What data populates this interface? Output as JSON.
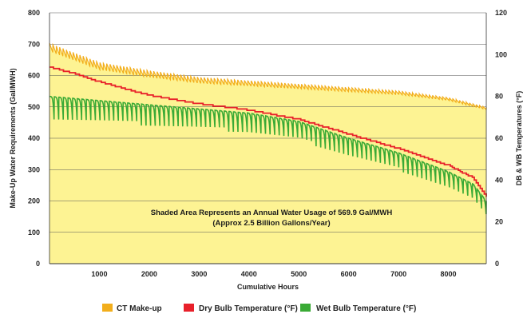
{
  "chart_data": {
    "type": "line",
    "title": "",
    "xlabel": "Cumulative Hours",
    "ylabel": "Make-Up Water Requirements (Gal/MWH)",
    "y2label": "DB & WB Temperatures (°F)",
    "xlim": [
      0,
      8760
    ],
    "ylim": [
      0,
      800
    ],
    "y2lim": [
      0,
      120
    ],
    "xticks": [
      1000,
      2000,
      3000,
      4000,
      5000,
      6000,
      7000,
      8000
    ],
    "xtick_labels": [
      "1000",
      "2000",
      "3000",
      "4000",
      "5000",
      "6000",
      "7000",
      "8000"
    ],
    "yticks": [
      0,
      100,
      200,
      300,
      400,
      500,
      600,
      700,
      800
    ],
    "ytick_labels": [
      "0",
      "100",
      "200",
      "300",
      "400",
      "500",
      "600",
      "700",
      "800"
    ],
    "y2ticks": [
      0,
      20,
      40,
      60,
      80,
      100,
      120
    ],
    "y2tick_labels": [
      "0",
      "20",
      "40",
      "60",
      "80",
      "100",
      "120"
    ],
    "grid": true,
    "legend": "bottom",
    "annotation": {
      "line1": "Shaded Area Represents an Annual Water Usage of 569.9 Gal/MWH",
      "line2": "(Approx 2.5 Billion Gallons/Year)"
    },
    "series": [
      {
        "name": "CT Make-up",
        "axis": "left",
        "color": "#f2ae1c",
        "x": [
          0,
          1000,
          2000,
          3000,
          4000,
          5000,
          6000,
          7000,
          8000,
          8760
        ],
        "y": [
          690,
          630,
          605,
          585,
          575,
          565,
          555,
          545,
          525,
          495
        ]
      },
      {
        "name": "Dry Bulb Temperature (°F)",
        "axis": "right",
        "color": "#e8202a",
        "x": [
          0,
          500,
          1000,
          2000,
          3000,
          4000,
          5000,
          6000,
          7000,
          8000,
          8500,
          8760
        ],
        "y": [
          94,
          91,
          87,
          80.5,
          76.5,
          73.5,
          69,
          62,
          55,
          47,
          41,
          32
        ]
      },
      {
        "name": "Wet Bulb Temperature (°F)",
        "axis": "right",
        "color": "#3aaa35",
        "x": [
          0,
          1000,
          2000,
          3000,
          4000,
          5000,
          6000,
          7000,
          8000,
          8500,
          8760
        ],
        "y": [
          80,
          78,
          76,
          74,
          72,
          68,
          60,
          53,
          44,
          38,
          30
        ]
      }
    ],
    "fill_color": "#fdf393"
  }
}
